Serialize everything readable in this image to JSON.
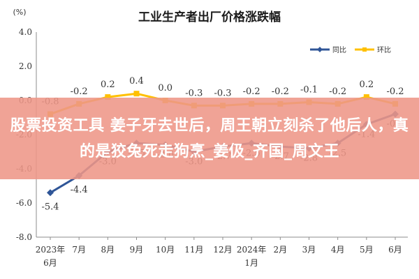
{
  "chart_data": {
    "type": "line",
    "title": "工业生产者出厂价格涨跌幅",
    "unit": "(%)",
    "ylim": [
      -8,
      4
    ],
    "yticks": [
      "4.0",
      "2.0",
      "0.0",
      "-2.0",
      "-4.0",
      "-6.0",
      "-8.0"
    ],
    "ytick_values": [
      4,
      2,
      0,
      -2,
      -4,
      -6,
      -8
    ],
    "categories": [
      {
        "line1": "2023年",
        "line2": "6月"
      },
      {
        "line1": "7月",
        "line2": ""
      },
      {
        "line1": "8月",
        "line2": ""
      },
      {
        "line1": "9月",
        "line2": ""
      },
      {
        "line1": "10月",
        "line2": ""
      },
      {
        "line1": "11月",
        "line2": ""
      },
      {
        "line1": "12月",
        "line2": ""
      },
      {
        "line1": "2024年",
        "line2": "1月"
      },
      {
        "line1": "2月",
        "line2": ""
      },
      {
        "line1": "3月",
        "line2": ""
      },
      {
        "line1": "4月",
        "line2": ""
      },
      {
        "line1": "5月",
        "line2": ""
      },
      {
        "line1": "6月",
        "line2": ""
      }
    ],
    "series": [
      {
        "name": "同比",
        "color": "#2f5597",
        "values": [
          -5.4,
          -4.4,
          -3.0,
          -2.5,
          -2.6,
          -3.0,
          -2.7,
          -2.5,
          -2.7,
          -2.8,
          -2.5,
          -1.4,
          -0.8
        ],
        "labels": [
          "-5.4",
          "-4.4",
          "-3.0",
          "-2.5",
          "-2.6",
          "-3.0",
          "-2.7",
          "-2.5",
          "-2.7",
          "-2.8",
          "-2.5",
          "-1.4",
          "-0.8"
        ]
      },
      {
        "name": "环比",
        "color": "#ffc000",
        "values": [
          -0.8,
          -0.2,
          0.2,
          0.4,
          0.0,
          -0.3,
          -0.3,
          -0.2,
          -0.2,
          -0.1,
          -0.2,
          0.2,
          -0.2
        ],
        "labels": [
          "-0.8",
          "-0.2",
          "0.2",
          "0.4",
          "0.0",
          "-0.3",
          "-0.3",
          "-0.2",
          "-0.2",
          "-0.1",
          "-0.2",
          "0.2",
          "-0.2"
        ]
      }
    ],
    "legend_position": "top-right",
    "grid": false
  },
  "overlay": {
    "text": "股票投资工具 姜子牙去世后，周王朝立刻杀了他后人，真的是狡兔死走狗烹_姜伋_齐国_周文王"
  }
}
